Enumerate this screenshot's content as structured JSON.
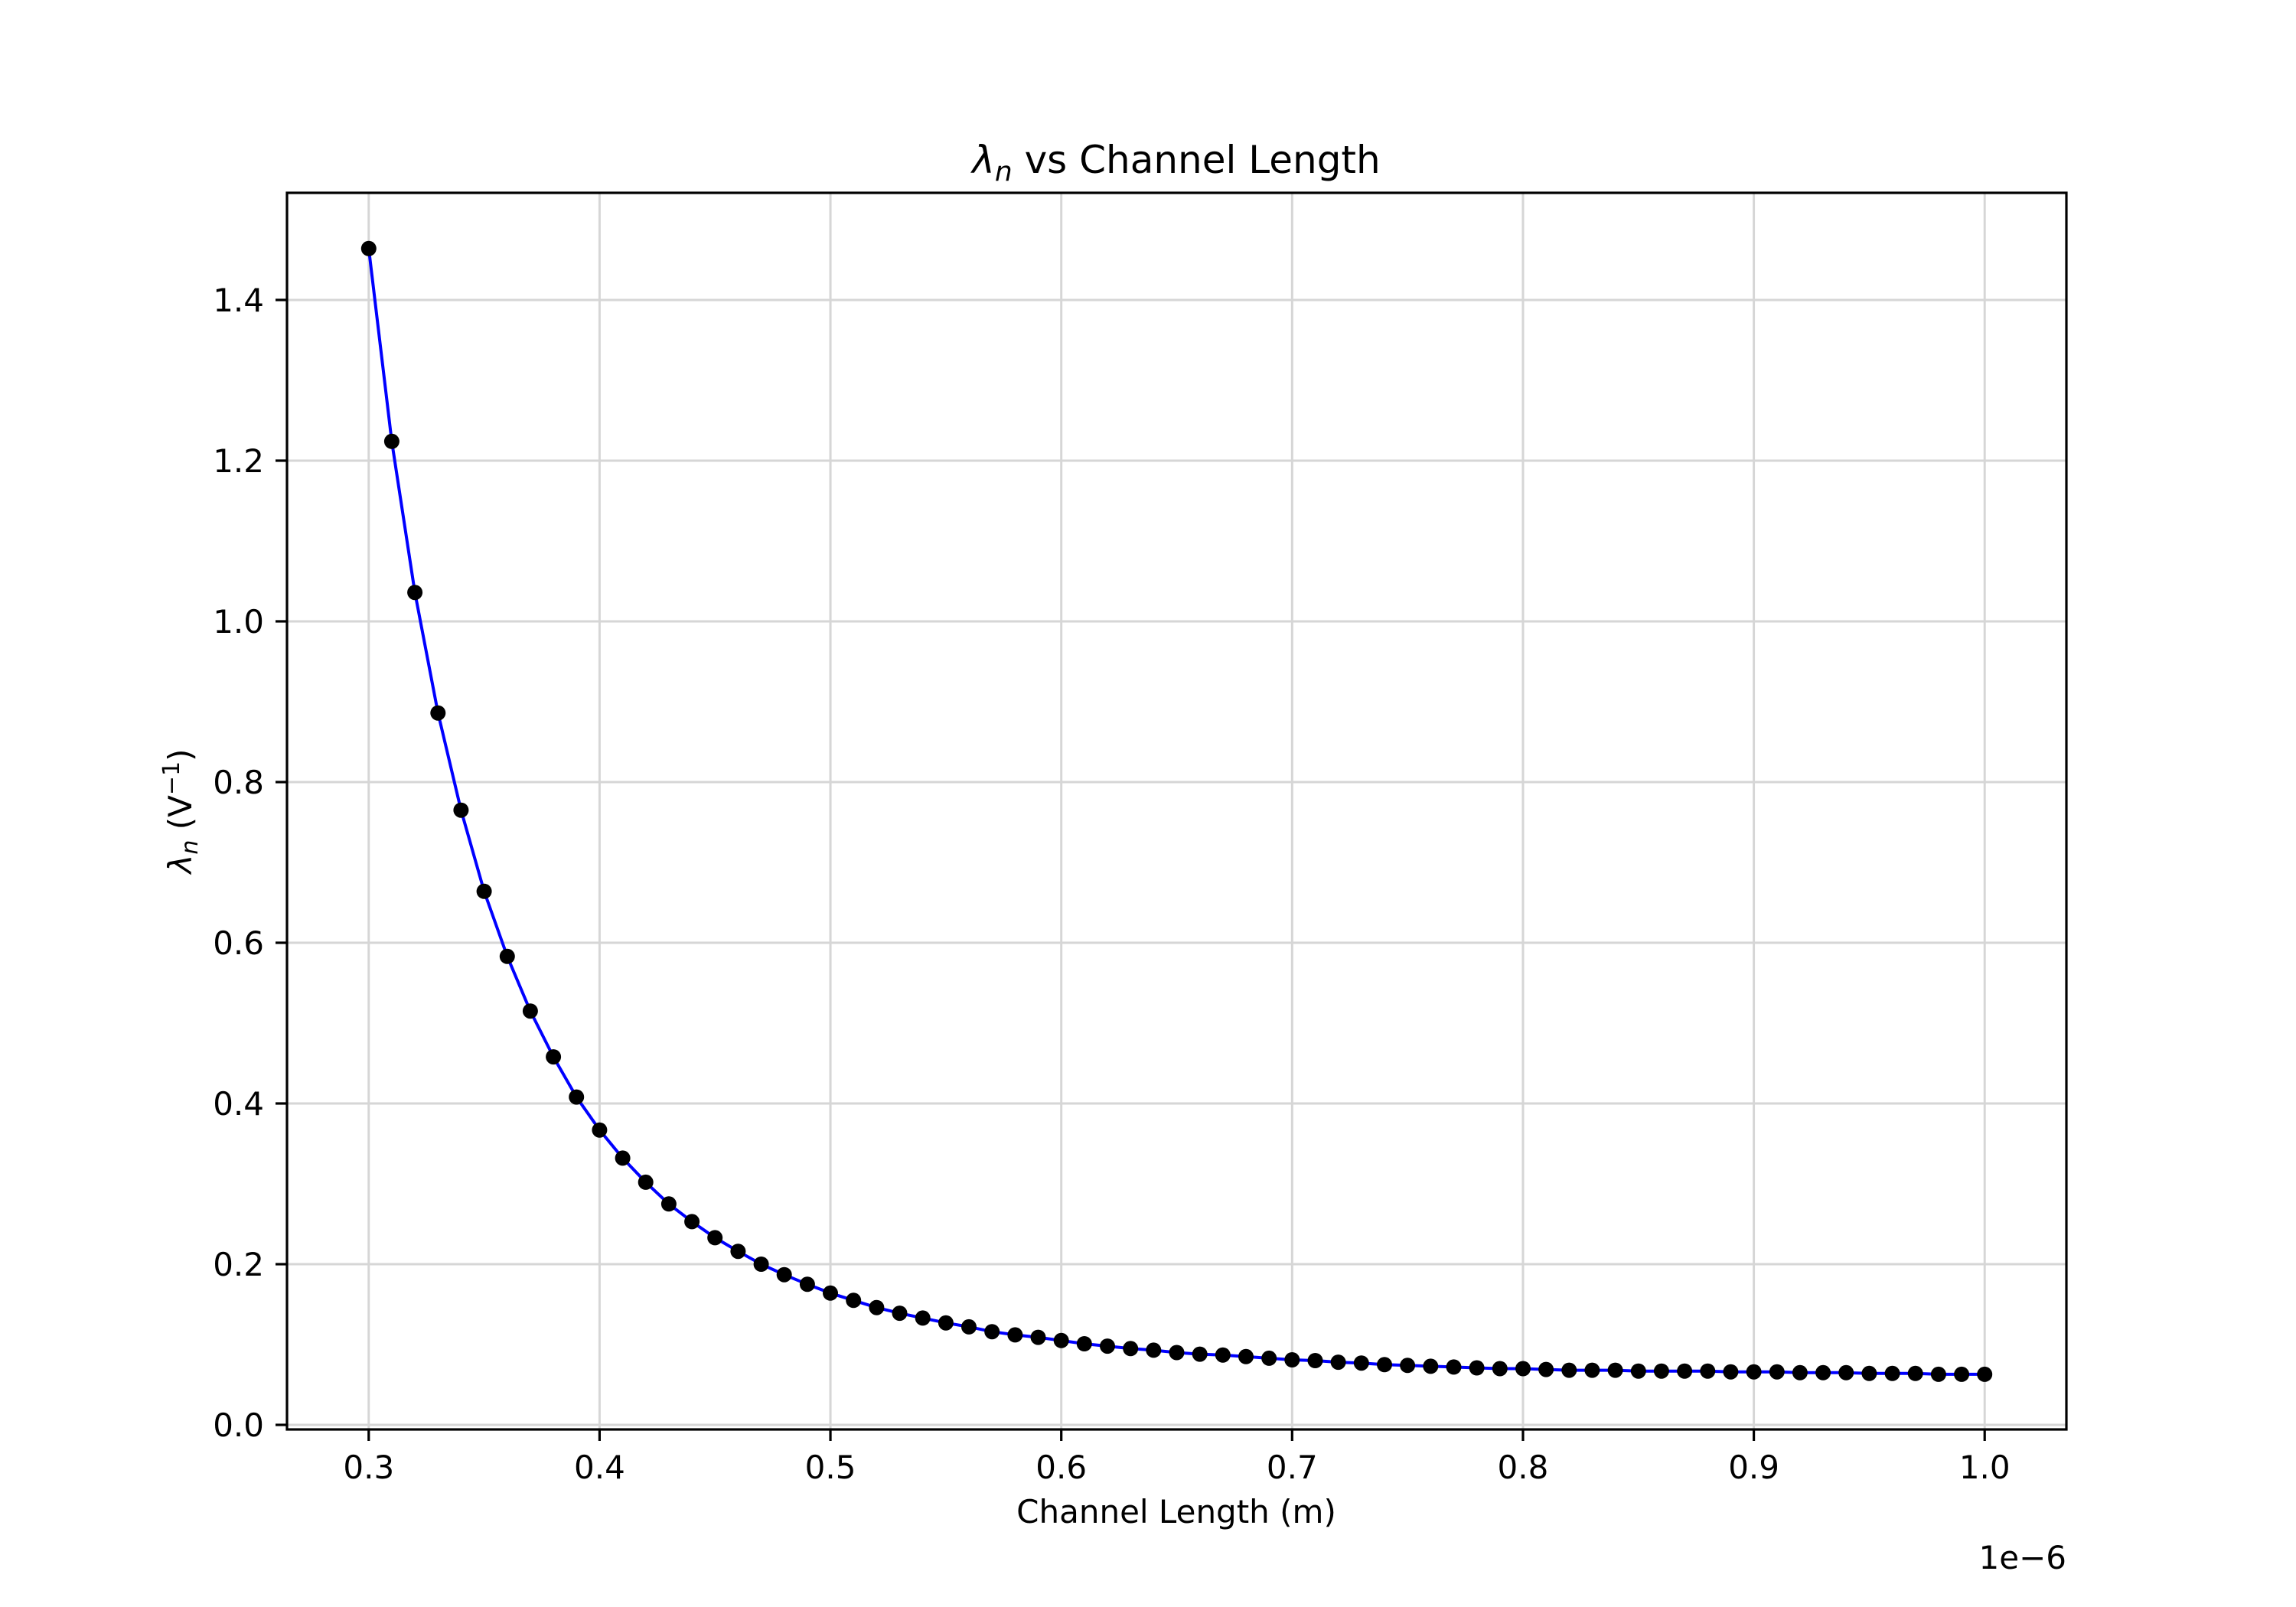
{
  "chart_data": {
    "type": "line",
    "title": "λn vs Channel Length",
    "title_parts": {
      "symbol": "λ",
      "subscript": "n",
      "rest": " vs Channel Length"
    },
    "xlabel": "Channel Length (m)",
    "ylabel": "λn (V⁻¹)",
    "ylabel_parts": {
      "symbol": "λ",
      "subscript": "n",
      "rest": "  (V",
      "sup": "−1",
      "close": ")"
    },
    "x_offset_text": "1e−6",
    "xlim": [
      0.2646,
      1.0354
    ],
    "ylim": [
      -0.0057,
      1.5333
    ],
    "x_scale_note": "x values in units of 1e-6 m",
    "grid": true,
    "legend": null,
    "xticks": [
      0.3,
      0.4,
      0.5,
      0.6,
      0.7,
      0.8,
      0.9,
      1.0
    ],
    "xtick_labels": [
      "0.3",
      "0.4",
      "0.5",
      "0.6",
      "0.7",
      "0.8",
      "0.9",
      "1.0"
    ],
    "yticks": [
      0.0,
      0.2,
      0.4,
      0.6,
      0.8,
      1.0,
      1.2,
      1.4
    ],
    "ytick_labels": [
      "0.0",
      "0.2",
      "0.4",
      "0.6",
      "0.8",
      "1.0",
      "1.2",
      "1.4"
    ],
    "series": [
      {
        "name": "λn",
        "line_color": "#0000ff",
        "marker_color": "#000000",
        "marker": "o",
        "x": [
          0.3,
          0.31,
          0.32,
          0.33,
          0.34,
          0.35,
          0.36,
          0.37,
          0.38,
          0.39,
          0.4,
          0.41,
          0.42,
          0.43,
          0.44,
          0.45,
          0.46,
          0.47,
          0.48,
          0.49,
          0.5,
          0.51,
          0.52,
          0.53,
          0.54,
          0.55,
          0.56,
          0.57,
          0.58,
          0.59,
          0.6,
          0.61,
          0.62,
          0.63,
          0.64,
          0.65,
          0.66,
          0.67,
          0.68,
          0.69,
          0.7,
          0.71,
          0.72,
          0.73,
          0.74,
          0.75,
          0.76,
          0.77,
          0.78,
          0.79,
          0.8,
          0.81,
          0.82,
          0.83,
          0.84,
          0.85,
          0.86,
          0.87,
          0.88,
          0.89,
          0.9,
          0.91,
          0.92,
          0.93,
          0.94,
          0.95,
          0.96,
          0.97,
          0.98,
          0.99,
          1.0
        ],
        "values": [
          1.464,
          1.224,
          1.036,
          0.886,
          0.765,
          0.664,
          0.583,
          0.515,
          0.458,
          0.408,
          0.367,
          0.332,
          0.302,
          0.275,
          0.253,
          0.233,
          0.216,
          0.2,
          0.187,
          0.175,
          0.164,
          0.155,
          0.146,
          0.139,
          0.133,
          0.127,
          0.122,
          0.116,
          0.112,
          0.109,
          0.105,
          0.101,
          0.098,
          0.095,
          0.093,
          0.09,
          0.088,
          0.087,
          0.085,
          0.083,
          0.081,
          0.08,
          0.078,
          0.077,
          0.075,
          0.074,
          0.073,
          0.072,
          0.071,
          0.07,
          0.07,
          0.069,
          0.068,
          0.068,
          0.068,
          0.067,
          0.067,
          0.067,
          0.067,
          0.066,
          0.066,
          0.066,
          0.065,
          0.065,
          0.065,
          0.064,
          0.064,
          0.064,
          0.063,
          0.063,
          0.063
        ]
      }
    ]
  }
}
